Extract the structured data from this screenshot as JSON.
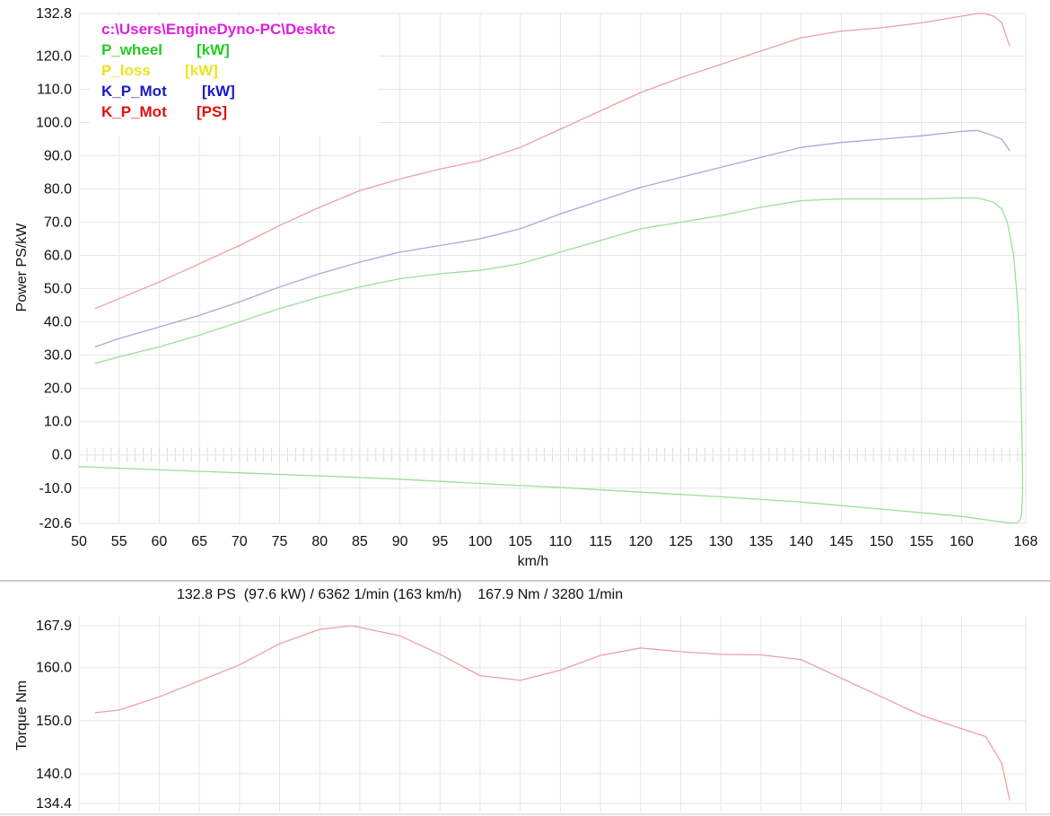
{
  "summary": "132.8 PS  (97.6 kW) / 6362 1/min (163 km/h)    167.9 Nm / 3280 1/min",
  "chart_data": [
    {
      "type": "line",
      "xlabel": "km/h",
      "ylabel": "Power PS/kW",
      "xlim": [
        50,
        168
      ],
      "ylim": [
        -20.6,
        132.8
      ],
      "x_ticks": [
        "50",
        "55",
        "60",
        "65",
        "70",
        "75",
        "80",
        "85",
        "90",
        "95",
        "100",
        "105",
        "110",
        "115",
        "120",
        "125",
        "130",
        "135",
        "140",
        "145",
        "150",
        "155",
        "160",
        "168"
      ],
      "y_ticks": [
        "132.8",
        "120.0",
        "110.0",
        "100.0",
        "90.0",
        "80.0",
        "70.0",
        "60.0",
        "50.0",
        "40.0",
        "30.0",
        "20.0",
        "10.0",
        "0.0",
        "-10.0",
        "-20.6"
      ],
      "legend": [
        {
          "label": "c:\\Users\\EngineDyno-PC\\Desktc",
          "unit": "",
          "color": "#e020e0"
        },
        {
          "label": "P_wheel",
          "unit": "[kW]",
          "color": "#22cc22"
        },
        {
          "label": "P_loss",
          "unit": "[kW]",
          "color": "#f0e020"
        },
        {
          "label": "K_P_Mot",
          "unit": "[kW]",
          "color": "#1a1ac8"
        },
        {
          "label": "K_P_Mot",
          "unit": "[PS]",
          "color": "#e01010"
        }
      ],
      "series": [
        {
          "name": "K_P_Mot [PS]",
          "color": "#eea0a0",
          "x": [
            52,
            55,
            60,
            65,
            70,
            75,
            80,
            85,
            90,
            95,
            100,
            105,
            110,
            115,
            120,
            125,
            130,
            135,
            140,
            145,
            150,
            155,
            160,
            162,
            163,
            164,
            165,
            166
          ],
          "y": [
            44,
            47,
            52,
            57.5,
            63,
            69,
            74.5,
            79.5,
            83,
            86,
            88.5,
            92.5,
            98,
            103.5,
            109,
            113.5,
            117.5,
            121.5,
            125.5,
            127.5,
            128.5,
            130,
            132,
            132.8,
            132.7,
            132,
            130,
            123
          ]
        },
        {
          "name": "K_P_Mot [kW]",
          "color": "#a8a8d8",
          "x": [
            52,
            55,
            60,
            65,
            70,
            75,
            80,
            85,
            90,
            95,
            100,
            105,
            110,
            115,
            120,
            125,
            130,
            135,
            140,
            145,
            150,
            155,
            160,
            162,
            164,
            165,
            166
          ],
          "y": [
            32.5,
            35,
            38.5,
            42,
            46,
            50.5,
            54.5,
            58,
            61,
            63,
            65,
            68,
            72.5,
            76.5,
            80.5,
            83.5,
            86.5,
            89.5,
            92.5,
            94,
            95,
            96,
            97.3,
            97.6,
            96,
            95,
            91.5
          ]
        },
        {
          "name": "P_wheel [kW]",
          "color": "#99e099",
          "x": [
            52,
            55,
            60,
            65,
            70,
            75,
            80,
            85,
            90,
            95,
            100,
            105,
            110,
            115,
            120,
            125,
            130,
            135,
            140,
            145,
            150,
            155,
            160,
            162,
            164,
            165,
            165.7,
            166.5,
            167,
            167.3,
            167.5,
            167.6,
            167.6,
            167.5,
            167.4,
            167.2,
            166.8,
            165,
            160,
            150,
            140,
            130,
            120,
            110,
            100,
            90,
            80,
            70,
            60,
            50
          ],
          "y": [
            27.5,
            29.5,
            32.5,
            36,
            40,
            44,
            47.5,
            50.5,
            53,
            54.5,
            55.5,
            57.5,
            61,
            64.5,
            68,
            70,
            72,
            74.5,
            76.5,
            77,
            77,
            77,
            77.3,
            77.3,
            76,
            74,
            70,
            60,
            45,
            30,
            10,
            -5,
            -12,
            -17,
            -19,
            -20,
            -20.6,
            -20.2,
            -18.5,
            -16.3,
            -14.2,
            -12.6,
            -11.2,
            -9.8,
            -8.6,
            -7.3,
            -6.3,
            -5.4,
            -4.5,
            -3.5
          ]
        }
      ]
    },
    {
      "type": "line",
      "xlabel": "",
      "ylabel": "Torque Nm",
      "ylim": [
        134.4,
        167.9
      ],
      "y_ticks": [
        "167.9",
        "160.0",
        "150.0",
        "140.0",
        "134.4"
      ],
      "series": [
        {
          "name": "Torque",
          "color": "#eea0a0",
          "x": [
            52,
            55,
            60,
            65,
            70,
            75,
            80,
            84,
            90,
            95,
            100,
            105,
            110,
            115,
            120,
            125,
            130,
            135,
            140,
            145,
            150,
            155,
            160,
            163,
            165,
            166
          ],
          "y": [
            151.5,
            152,
            154.5,
            157.5,
            160.5,
            164.5,
            167.2,
            167.9,
            166,
            162.5,
            158.5,
            157.6,
            159.5,
            162.3,
            163.7,
            163,
            162.5,
            162.4,
            161.5,
            158,
            154.5,
            151,
            148.5,
            147,
            142,
            135
          ]
        }
      ]
    }
  ]
}
